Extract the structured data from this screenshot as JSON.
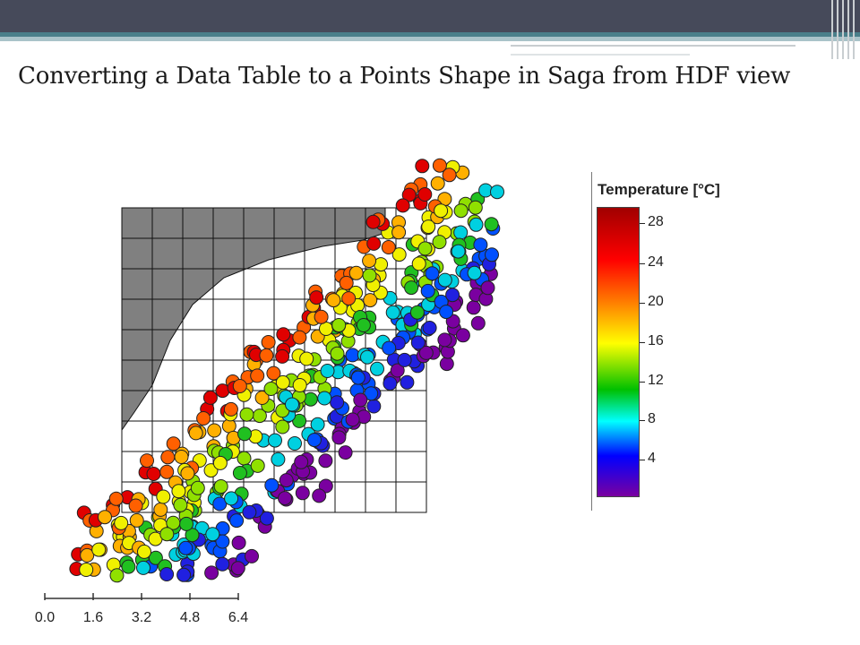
{
  "slide": {
    "title": "Converting a Data Table to a Points Shape in Saga from HDF view"
  },
  "legend": {
    "title": "Temperature [°C]",
    "ticks": [
      "28",
      "24",
      "20",
      "16",
      "12",
      "8",
      "4"
    ]
  },
  "scalebar": {
    "ticks": [
      "0.0",
      "1.6",
      "3.2",
      "4.8",
      "6.4"
    ]
  },
  "colors": {
    "header": "#464a5a",
    "accent": "#4a7f8a",
    "land": "#808080"
  }
}
